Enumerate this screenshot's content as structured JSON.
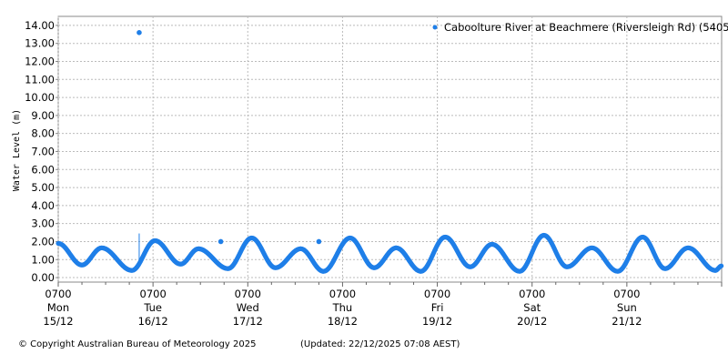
{
  "chart_data": {
    "type": "scatter",
    "ylabel": "Water Level (m)",
    "xlabel": "",
    "ylim": [
      -0.25,
      14.5
    ],
    "x_range": [
      "2025-12-15 07:00",
      "2025-12-22 07:00"
    ],
    "grid": true,
    "legend_position": "top-right",
    "y_ticks": [
      "0.00",
      "1.00",
      "2.00",
      "3.00",
      "4.00",
      "5.00",
      "6.00",
      "7.00",
      "8.00",
      "9.00",
      "10.00",
      "11.00",
      "12.00",
      "13.00",
      "14.00"
    ],
    "x_ticks": [
      {
        "time": "0700",
        "day": "Mon",
        "date": "15/12"
      },
      {
        "time": "0700",
        "day": "Tue",
        "date": "16/12"
      },
      {
        "time": "0700",
        "day": "Wed",
        "date": "17/12"
      },
      {
        "time": "0700",
        "day": "Thu",
        "date": "18/12"
      },
      {
        "time": "0700",
        "day": "Fri",
        "date": "19/12"
      },
      {
        "time": "0700",
        "day": "Sat",
        "date": "20/12"
      },
      {
        "time": "0700",
        "day": "Sun",
        "date": "21/12"
      }
    ],
    "series": [
      {
        "name": "Caboolture River at Beachmere (Riversleigh Rd) (540558)",
        "color": "#1f7fe8",
        "turning_points": [
          [
            "2025-12-15 07:00",
            1.9
          ],
          [
            "2025-12-15 13:00",
            0.7
          ],
          [
            "2025-12-15 18:00",
            1.65
          ],
          [
            "2025-12-16 01:40",
            0.4
          ],
          [
            "2025-12-16 07:30",
            2.05
          ],
          [
            "2025-12-16 14:00",
            0.75
          ],
          [
            "2025-12-16 18:30",
            1.6
          ],
          [
            "2025-12-17 02:00",
            0.5
          ],
          [
            "2025-12-17 08:00",
            2.2
          ],
          [
            "2025-12-17 14:00",
            0.55
          ],
          [
            "2025-12-17 20:25",
            1.6
          ],
          [
            "2025-12-18 02:10",
            0.35
          ],
          [
            "2025-12-18 08:55",
            2.2
          ],
          [
            "2025-12-18 15:00",
            0.55
          ],
          [
            "2025-12-18 20:35",
            1.65
          ],
          [
            "2025-12-19 02:50",
            0.35
          ],
          [
            "2025-12-19 09:00",
            2.25
          ],
          [
            "2025-12-19 15:20",
            0.6
          ],
          [
            "2025-12-19 20:50",
            1.85
          ],
          [
            "2025-12-20 03:50",
            0.35
          ],
          [
            "2025-12-20 10:00",
            2.35
          ],
          [
            "2025-12-20 15:50",
            0.6
          ],
          [
            "2025-12-20 22:10",
            1.65
          ],
          [
            "2025-12-21 04:40",
            0.35
          ],
          [
            "2025-12-21 11:00",
            2.25
          ],
          [
            "2025-12-21 16:40",
            0.5
          ],
          [
            "2025-12-21 22:30",
            1.65
          ],
          [
            "2025-12-22 05:25",
            0.4
          ],
          [
            "2025-12-22 07:00",
            0.65
          ]
        ],
        "outliers": [
          [
            "2025-12-16 03:30",
            13.6
          ],
          [
            "2025-12-17 00:10",
            2.0
          ],
          [
            "2025-12-18 01:00",
            2.0
          ]
        ],
        "spike_line": {
          "time": "2025-12-16 03:30",
          "from": 0.9,
          "to": 2.45
        }
      }
    ]
  },
  "footer": {
    "copyright": "© Copyright Australian Bureau of Meteorology 2025",
    "updated": "(Updated: 22/12/2025 07:08 AEST)"
  }
}
